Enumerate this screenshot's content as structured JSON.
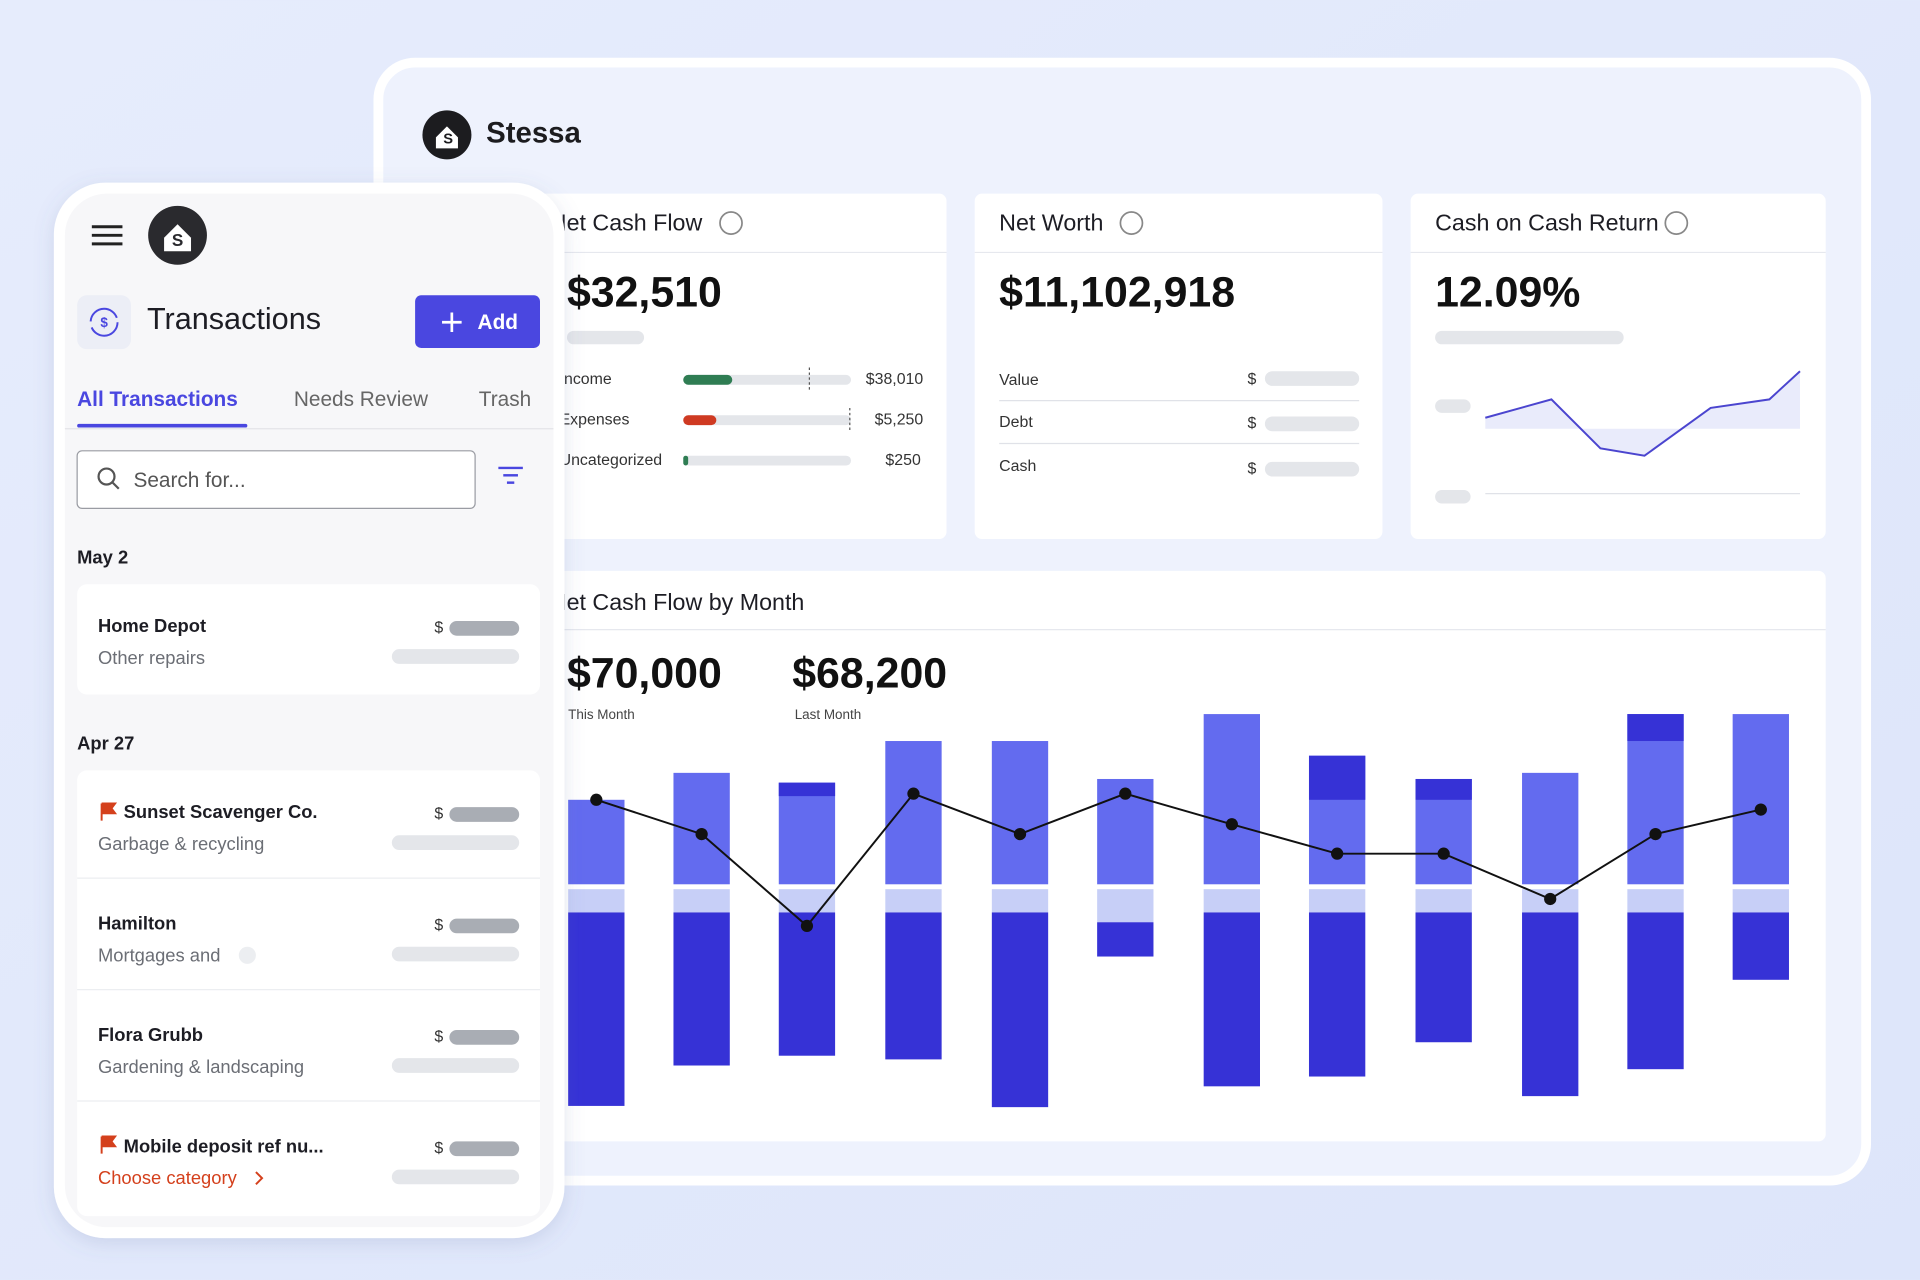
{
  "brand": "Stessa",
  "currency_symbol": "$",
  "cards": [
    {
      "title": "Net Cash Flow",
      "value": "$32,510",
      "rows": [
        {
          "label": "Income",
          "amount": "$38,010"
        },
        {
          "label": "Expenses",
          "amount": "$5,250"
        },
        {
          "label": "Uncategorized",
          "amount": "$250"
        }
      ]
    },
    {
      "title": "Net Worth",
      "value": "$11,102,918",
      "rows": [
        {
          "label": "Value"
        },
        {
          "label": "Debt"
        },
        {
          "label": "Cash"
        }
      ]
    },
    {
      "title": "Cash on Cash Return",
      "value": "12.09%"
    }
  ],
  "monthly": {
    "title": "Net Cash Flow by Month",
    "stats": [
      {
        "value": "$70,000",
        "label": "This Month"
      },
      {
        "value": "$68,200",
        "label": "Last Month"
      }
    ]
  },
  "mobile": {
    "title": "Transactions",
    "add_button": "Add",
    "tabs": [
      "All Transactions",
      "Needs Review",
      "Trash"
    ],
    "search_placeholder": "Search for...",
    "groups": [
      {
        "date": "May 2",
        "items": [
          {
            "name": "Home Depot",
            "category": "Other repairs"
          }
        ]
      },
      {
        "date": "Apr 27",
        "items": [
          {
            "name": "Sunset Scavenger Co.",
            "category": "Garbage & recycling"
          },
          {
            "name": "Hamilton",
            "category": "Mortgages and"
          },
          {
            "name": "Flora Grubb",
            "category": "Gardening & landscaping"
          },
          {
            "name": "Mobile deposit ref nu...",
            "category": "Choose category"
          }
        ]
      }
    ]
  }
}
